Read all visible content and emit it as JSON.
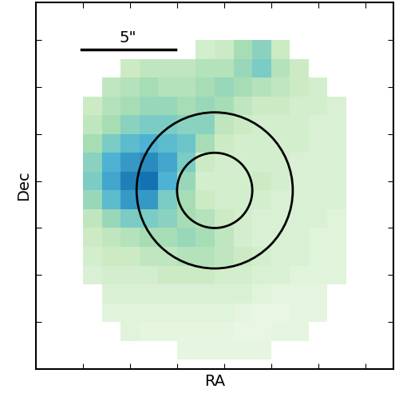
{
  "chart_data": {
    "type": "heatmap",
    "x_label": "RA",
    "y_label": "Dec",
    "xlim": [
      0,
      38
    ],
    "ylim": [
      0,
      39
    ],
    "xticks": [
      5,
      10,
      15,
      20,
      25,
      30,
      35
    ],
    "yticks": [
      5,
      10,
      15,
      20,
      25,
      30,
      35
    ],
    "tick_labels": false,
    "color": "GnBu",
    "color_range": [
      0,
      1.2
    ],
    "x_edges": [
      5,
      7,
      9,
      11,
      13,
      15,
      17,
      19,
      21,
      23,
      25,
      27,
      29,
      31,
      33
    ],
    "y_edges": [
      35,
      33,
      31,
      29,
      27,
      25,
      23,
      21,
      19,
      17,
      15,
      13,
      11,
      9,
      7,
      5,
      3,
      1
    ],
    "cells": [
      [
        null,
        null,
        null,
        null,
        null,
        null,
        0.25,
        0.3,
        0.45,
        0.55,
        0.3,
        null,
        null,
        null
      ],
      [
        null,
        null,
        0.3,
        0.35,
        0.35,
        0.35,
        0.4,
        0.4,
        0.5,
        0.6,
        0.4,
        0.3,
        null,
        null
      ],
      [
        null,
        0.35,
        0.4,
        0.45,
        0.4,
        0.4,
        0.45,
        0.5,
        0.45,
        0.4,
        0.35,
        0.3,
        0.25,
        null
      ],
      [
        0.3,
        0.4,
        0.45,
        0.5,
        0.5,
        0.45,
        0.5,
        0.45,
        0.35,
        0.3,
        0.3,
        0.25,
        0.25,
        0.2
      ],
      [
        0.35,
        0.45,
        0.55,
        0.6,
        0.6,
        0.55,
        0.55,
        0.35,
        0.3,
        0.25,
        0.25,
        0.25,
        0.2,
        0.2
      ],
      [
        0.45,
        0.6,
        0.7,
        0.75,
        0.7,
        0.65,
        0.45,
        0.3,
        0.25,
        0.25,
        0.25,
        0.25,
        0.2,
        0.2
      ],
      [
        0.55,
        0.75,
        0.85,
        0.9,
        0.8,
        0.6,
        0.3,
        0.25,
        0.25,
        0.25,
        0.25,
        0.2,
        0.2,
        0.2
      ],
      [
        0.6,
        0.8,
        0.95,
        1.0,
        0.75,
        0.5,
        0.25,
        0.25,
        0.25,
        0.3,
        0.25,
        0.2,
        0.2,
        0.2
      ],
      [
        0.5,
        0.7,
        0.85,
        0.85,
        0.6,
        0.45,
        0.3,
        0.25,
        0.25,
        0.25,
        0.2,
        0.2,
        0.2,
        0.2
      ],
      [
        0.35,
        0.5,
        0.6,
        0.6,
        0.55,
        0.45,
        0.4,
        0.3,
        0.25,
        0.2,
        0.2,
        0.2,
        0.2,
        0.15
      ],
      [
        0.3,
        0.35,
        0.4,
        0.45,
        0.45,
        0.5,
        0.45,
        0.35,
        0.25,
        0.2,
        0.2,
        0.2,
        0.15,
        0.15
      ],
      [
        0.25,
        0.3,
        0.3,
        0.35,
        0.35,
        0.4,
        0.4,
        0.35,
        0.3,
        0.25,
        0.2,
        0.2,
        0.15,
        0.15
      ],
      [
        0.2,
        0.25,
        0.25,
        0.25,
        0.3,
        0.3,
        0.3,
        0.25,
        0.25,
        0.2,
        0.2,
        0.15,
        0.15,
        0.15
      ],
      [
        null,
        0.2,
        0.2,
        0.2,
        0.2,
        0.2,
        0.2,
        0.2,
        0.2,
        0.15,
        0.12,
        0.12,
        0.12,
        null
      ],
      [
        null,
        0.15,
        0.15,
        0.15,
        0.15,
        0.15,
        0.15,
        0.15,
        0.12,
        0.1,
        0.1,
        0.12,
        0.12,
        null
      ],
      [
        null,
        null,
        0.15,
        0.12,
        0.12,
        0.12,
        0.12,
        0.12,
        0.1,
        0.1,
        0.12,
        0.12,
        null,
        null
      ],
      [
        null,
        null,
        null,
        null,
        null,
        0.12,
        0.12,
        0.12,
        0.12,
        0.12,
        null,
        null,
        null,
        null
      ]
    ],
    "apertures": [
      {
        "x": 19,
        "y": 19,
        "radius": 4
      },
      {
        "x": 19,
        "y": 19,
        "radius": 8.3
      }
    ],
    "scale_bar": {
      "label": "5\"",
      "length": 10
    }
  }
}
